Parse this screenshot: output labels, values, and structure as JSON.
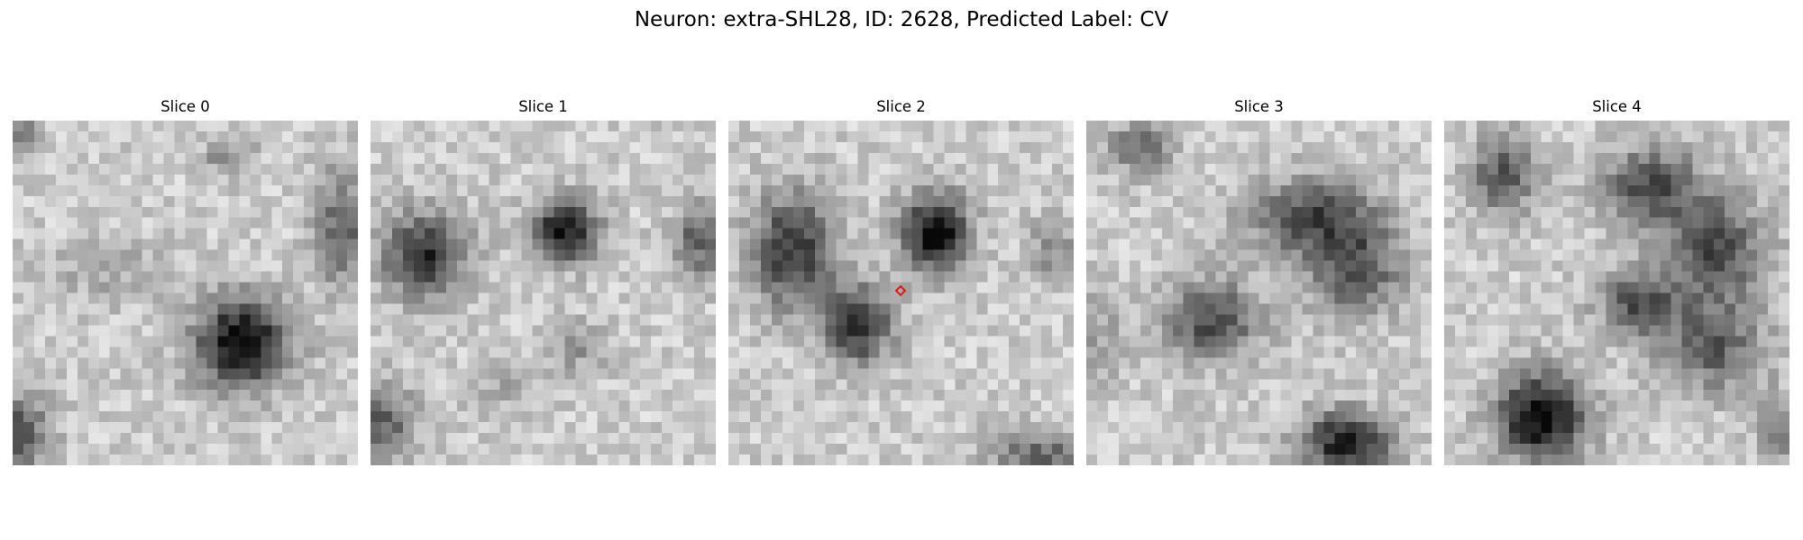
{
  "figure": {
    "title": "Neuron: extra-SHL28, ID: 2628, Predicted Label: CV"
  },
  "panels": [
    {
      "title": "Slice 0"
    },
    {
      "title": "Slice 1"
    },
    {
      "title": "Slice 2",
      "has_marker": true
    },
    {
      "title": "Slice 3"
    },
    {
      "title": "Slice 4"
    }
  ],
  "colors": {
    "background": "#ffffff",
    "marker": "#e8141c",
    "colormap": "grayscale"
  },
  "icons": {
    "marker": "red-diamond-marker-icon"
  }
}
